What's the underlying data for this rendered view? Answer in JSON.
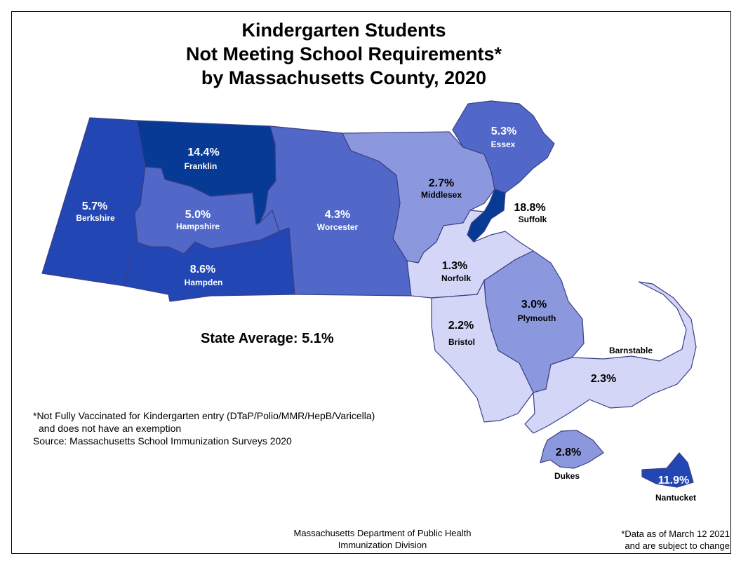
{
  "title": {
    "line1": "Kindergarten Students",
    "line2": "Not Meeting School Requirements*",
    "line3": "by Massachusetts County, 2020"
  },
  "colors": {
    "highest": "#073a94",
    "high": "#2246b4",
    "mid": "#5168c9",
    "low": "#8c98de",
    "lowest": "#d3d6f6",
    "border": "#3b3f86"
  },
  "counties": {
    "berkshire": {
      "name": "Berkshire",
      "pct": "5.7%",
      "value": 5.7
    },
    "franklin": {
      "name": "Franklin",
      "pct": "14.4%",
      "value": 14.4
    },
    "hampshire": {
      "name": "Hampshire",
      "pct": "5.0%",
      "value": 5.0
    },
    "hampden": {
      "name": "Hampden",
      "pct": "8.6%",
      "value": 8.6
    },
    "worcester": {
      "name": "Worcester",
      "pct": "4.3%",
      "value": 4.3
    },
    "middlesex": {
      "name": "Middlesex",
      "pct": "2.7%",
      "value": 2.7
    },
    "essex": {
      "name": "Essex",
      "pct": "5.3%",
      "value": 5.3
    },
    "suffolk": {
      "name": "Suffolk",
      "pct": "18.8%",
      "value": 18.8
    },
    "norfolk": {
      "name": "Norfolk",
      "pct": "1.3%",
      "value": 1.3
    },
    "plymouth": {
      "name": "Plymouth",
      "pct": "3.0%",
      "value": 3.0
    },
    "bristol": {
      "name": "Bristol",
      "pct": "2.2%",
      "value": 2.2
    },
    "barnstable": {
      "name": "Barnstable",
      "pct": "2.3%",
      "value": 2.3
    },
    "dukes": {
      "name": "Dukes",
      "pct": "2.8%",
      "value": 2.8
    },
    "nantucket": {
      "name": "Nantucket",
      "pct": "11.9%",
      "value": 11.9
    }
  },
  "state_average": "State Average: 5.1%",
  "footnote": {
    "line1": "*Not Fully Vaccinated for Kindergarten entry (DTaP/Polio/MMR/HepB/Varicella)",
    "line2": "and does not have an exemption",
    "line3": "Source: Massachusetts School Immunization Surveys 2020"
  },
  "credit": {
    "line1": "Massachusetts Department of Public Health",
    "line2": "Immunization Division"
  },
  "data_note": {
    "line1": "*Data as of March 12 2021",
    "line2": "and are subject to change"
  }
}
